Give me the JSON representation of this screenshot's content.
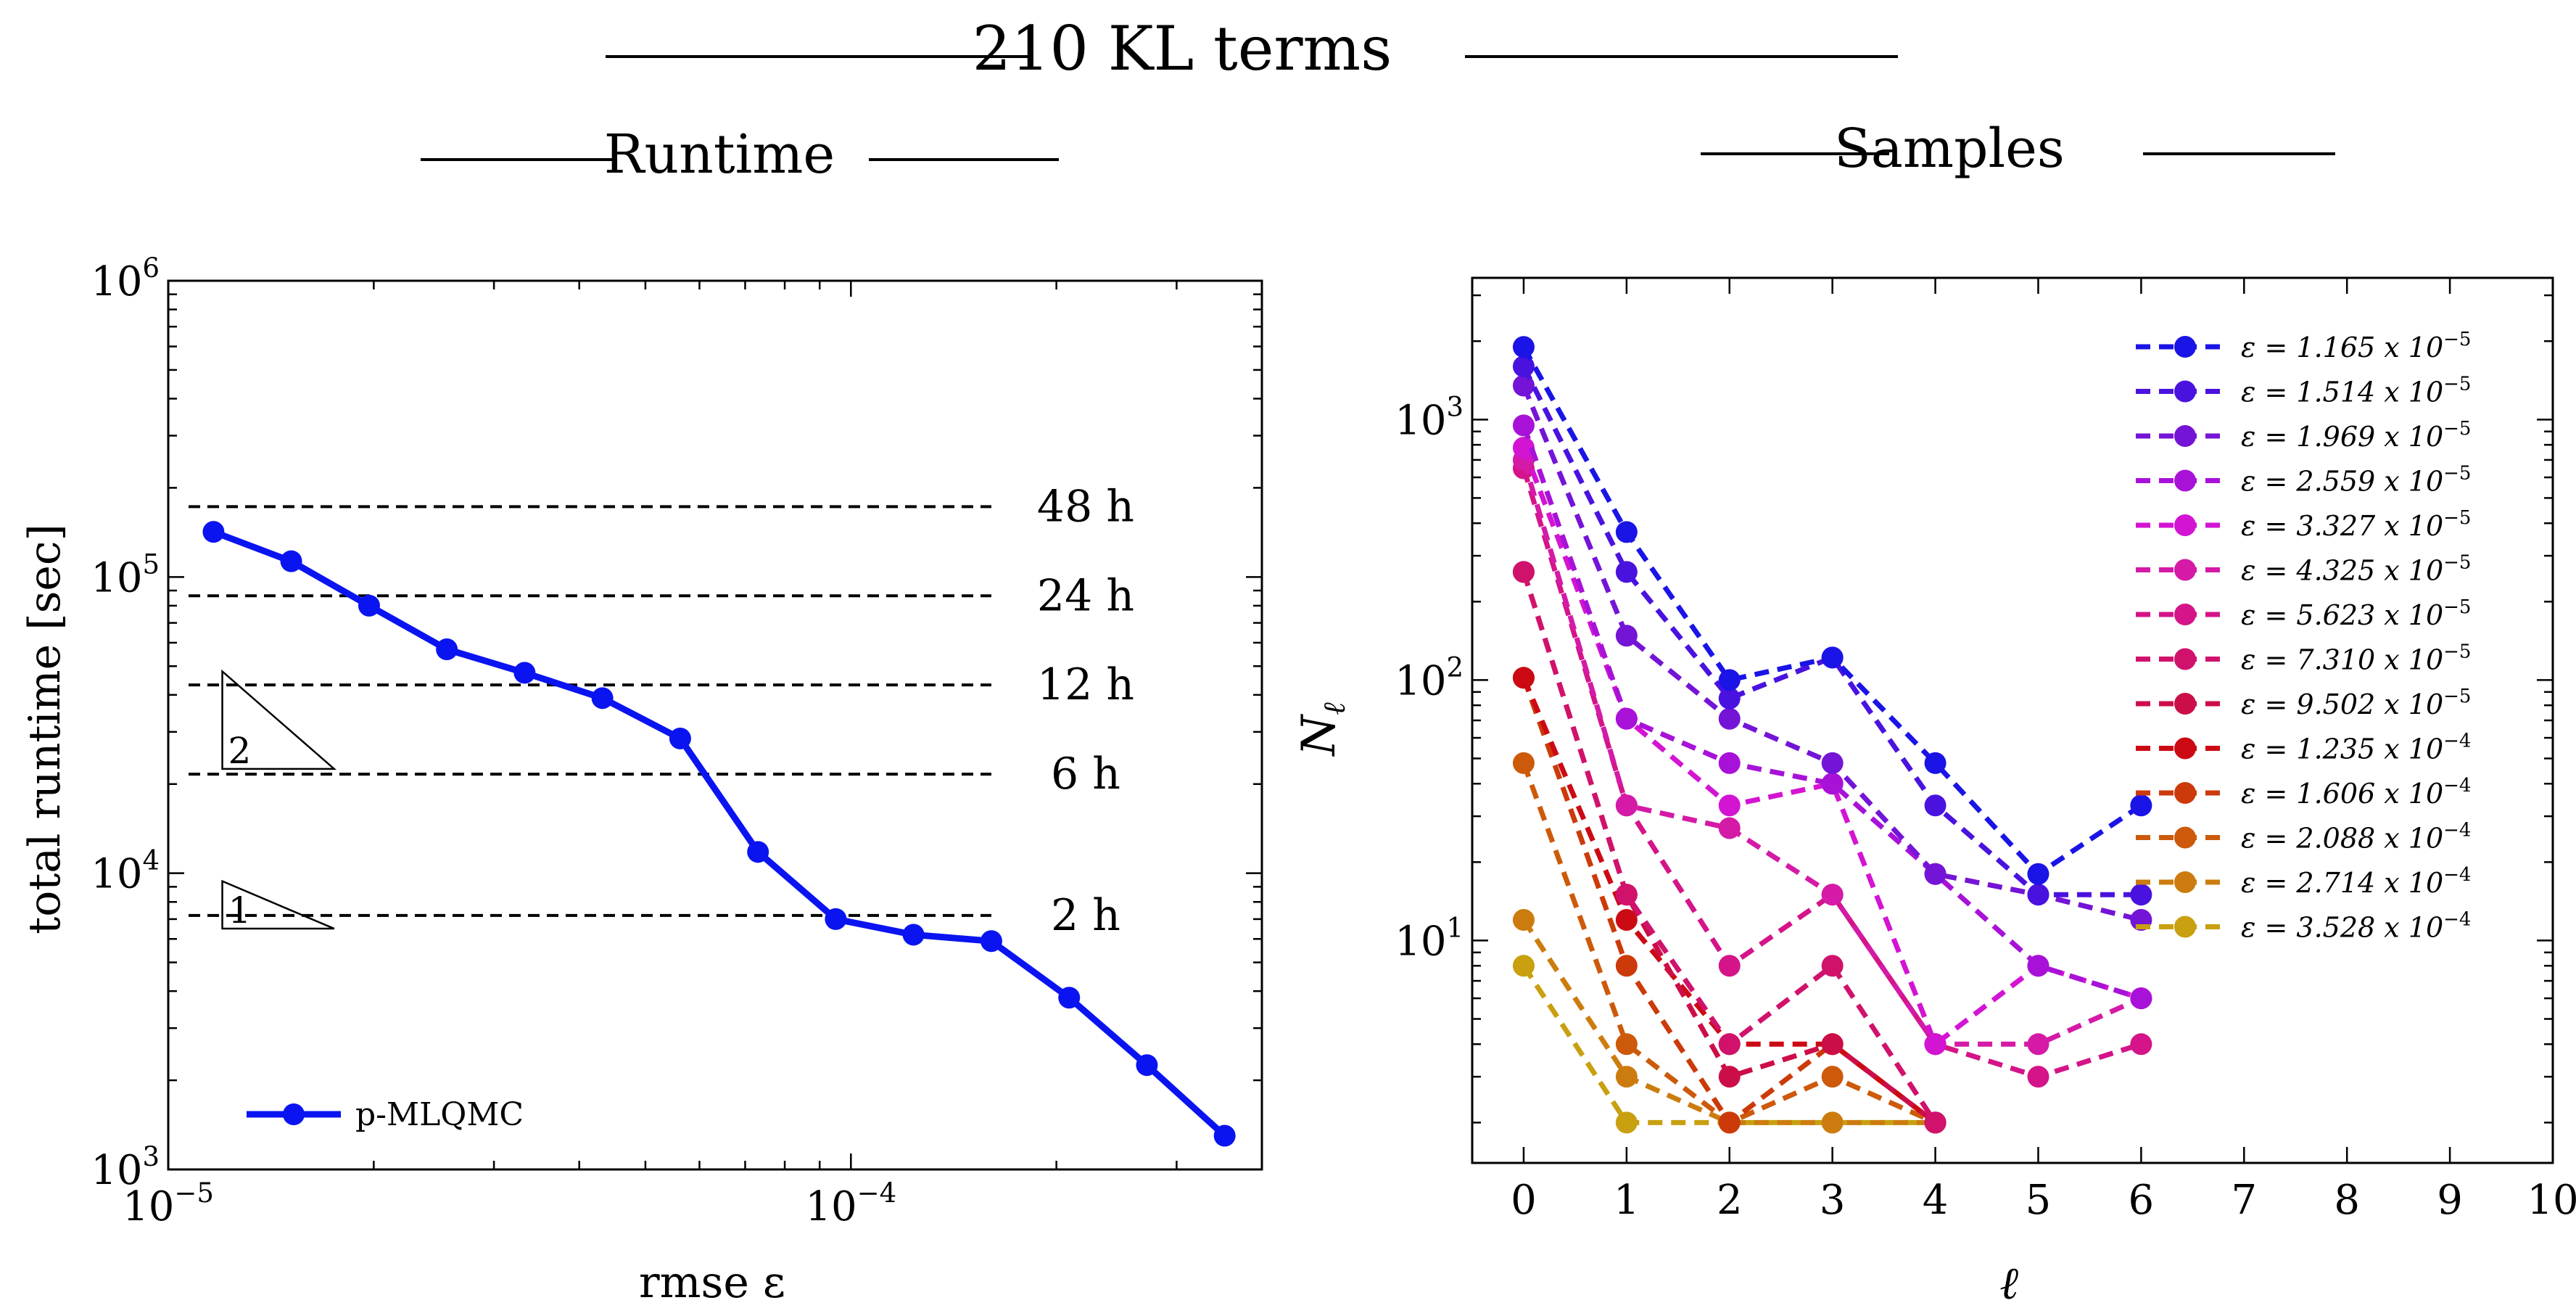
{
  "figure": {
    "suptitle": "210 KL terms"
  },
  "colors": {
    "axis": "#000000",
    "guide": "#000000",
    "runtime_line": "#0a14f0"
  },
  "chart_data": [
    {
      "type": "line",
      "panel": "left",
      "title": "Runtime",
      "xlabel": "rmse ε",
      "ylabel": "total runtime [sec]",
      "xscale": "log",
      "yscale": "log",
      "xlim": [
        1e-05,
        0.0004
      ],
      "ylim": [
        1000,
        1000000
      ],
      "x_ticks": [
        {
          "value": 1e-05,
          "base": "10",
          "exp": "−5"
        },
        {
          "value": 0.0001,
          "base": "10",
          "exp": "−4"
        }
      ],
      "y_ticks": [
        {
          "value": 1000,
          "base": "10",
          "exp": "3"
        },
        {
          "value": 10000,
          "base": "10",
          "exp": "4"
        },
        {
          "value": 100000,
          "base": "10",
          "exp": "5"
        },
        {
          "value": 1000000,
          "base": "10",
          "exp": "6"
        }
      ],
      "legend_position": "lower-left",
      "series": [
        {
          "name": "p-MLQMC",
          "color": "#0a14f0",
          "x": [
            1.165e-05,
            1.514e-05,
            1.969e-05,
            2.559e-05,
            3.327e-05,
            4.325e-05,
            5.623e-05,
            7.31e-05,
            9.502e-05,
            0.0001235,
            0.0001606,
            0.0002088,
            0.0002714,
            0.0003528
          ],
          "y": [
            142000,
            113000,
            80000,
            57000,
            47500,
            39000,
            28500,
            11800,
            7000,
            6200,
            5900,
            3800,
            2250,
            1300
          ]
        }
      ],
      "reference_lines": [
        {
          "label": "48 h",
          "seconds": 172800,
          "x_end": 0.0001606
        },
        {
          "label": "24 h",
          "seconds": 86400,
          "x_end": 0.0001606
        },
        {
          "label": "12 h",
          "seconds": 43200,
          "x_end": 0.0001606
        },
        {
          "label": "6 h",
          "seconds": 21600,
          "x_end": 0.0001606
        },
        {
          "label": "2 h",
          "seconds": 7200,
          "x_end": 0.0001606
        }
      ],
      "slope_triangles": [
        {
          "label": "2",
          "x0": 1.2e-05,
          "x1": 1.75e-05,
          "y_top": 48000,
          "y_bottom": 22500
        },
        {
          "label": "1",
          "x0": 1.2e-05,
          "x1": 1.75e-05,
          "y_top": 9400,
          "y_bottom": 6500
        }
      ]
    },
    {
      "type": "line",
      "panel": "right",
      "title": "Samples",
      "xlabel": "ℓ",
      "ylabel": "N",
      "ylabel_sub": "ℓ",
      "xscale": "linear",
      "yscale": "log",
      "xlim": [
        -0.5,
        10
      ],
      "ylim": [
        1.4,
        3500
      ],
      "x_ticks": [
        "0",
        "1",
        "2",
        "3",
        "4",
        "5",
        "6",
        "7",
        "8",
        "9",
        "10"
      ],
      "y_ticks": [
        {
          "value": 10,
          "base": "10",
          "exp": "1"
        },
        {
          "value": 100,
          "base": "10",
          "exp": "2"
        },
        {
          "value": 1000,
          "base": "10",
          "exp": "3"
        }
      ],
      "legend_position": "upper-right",
      "series": [
        {
          "name": "1.165",
          "exp": "−5",
          "color": "#1a14e6",
          "values": [
            1900,
            370,
            100,
            122,
            48,
            18,
            33
          ]
        },
        {
          "name": "1.514",
          "exp": "−5",
          "color": "#4a12df",
          "values": [
            1600,
            260,
            85,
            122,
            33,
            15,
            15
          ]
        },
        {
          "name": "1.969",
          "exp": "−5",
          "color": "#7414d6",
          "values": [
            1350,
            148,
            71,
            48,
            18,
            15,
            12
          ]
        },
        {
          "name": "2.559",
          "exp": "−5",
          "color": "#a812d8",
          "values": [
            950,
            71,
            48,
            40,
            18,
            8,
            6
          ]
        },
        {
          "name": "3.327",
          "exp": "−5",
          "color": "#d314d3",
          "values": [
            780,
            71,
            33,
            40,
            4,
            8,
            6
          ]
        },
        {
          "name": "4.325",
          "exp": "−5",
          "color": "#d41aa6",
          "values": [
            700,
            33,
            27,
            15,
            4,
            4,
            6
          ]
        },
        {
          "name": "5.623",
          "exp": "−5",
          "color": "#d41488",
          "values": [
            650,
            33,
            8,
            15,
            4,
            3,
            4
          ]
        },
        {
          "name": "7.310",
          "exp": "−5",
          "color": "#d0126c",
          "values": [
            260,
            15,
            4,
            8,
            2
          ]
        },
        {
          "name": "9.502",
          "exp": "−5",
          "color": "#cc0e48",
          "values": [
            260,
            15,
            3,
            4,
            2
          ]
        },
        {
          "name": "1.235",
          "exp": "−4",
          "color": "#cc0a14",
          "values": [
            102,
            12,
            4,
            4,
            2
          ]
        },
        {
          "name": "1.606",
          "exp": "−4",
          "color": "#cc3a0a",
          "values": [
            102,
            8,
            2,
            4,
            2
          ]
        },
        {
          "name": "2.088",
          "exp": "−4",
          "color": "#cc5a0a",
          "values": [
            48,
            4,
            2,
            3,
            2
          ]
        },
        {
          "name": "2.714",
          "exp": "−4",
          "color": "#cc7c0e",
          "values": [
            12,
            3,
            2,
            2,
            2
          ]
        },
        {
          "name": "3.528",
          "exp": "−4",
          "color": "#c8a010",
          "values": [
            8,
            2,
            2,
            2,
            2
          ]
        }
      ],
      "legend_prefix": "ε = ",
      "legend_times": "x 10"
    }
  ]
}
